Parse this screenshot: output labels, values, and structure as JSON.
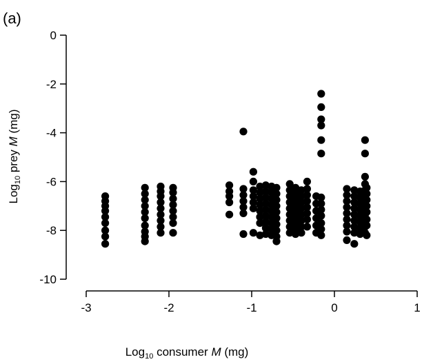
{
  "panel_label": "(a)",
  "chart_data": {
    "type": "scatter",
    "title": "",
    "xlabel": {
      "pre": "Log",
      "sub": "10",
      "mid": " consumer ",
      "var": "M",
      "post": " (mg)"
    },
    "ylabel": {
      "pre": "Log",
      "sub": "10",
      "mid": " prey ",
      "var": "M",
      "post": " (mg)"
    },
    "xlim": [
      -3,
      1
    ],
    "ylim": [
      -10,
      0
    ],
    "xticks": [
      -3,
      -2,
      -1,
      0,
      1
    ],
    "xtick_labels": [
      "-3",
      "-2",
      "-1",
      "0",
      "1"
    ],
    "yticks": [
      0,
      -2,
      -4,
      -6,
      -8,
      -10
    ],
    "ytick_labels": [
      "0",
      "-2",
      "-4",
      "-6",
      "-8",
      "-10"
    ],
    "grid": false,
    "marker_color": "#000000",
    "columns": [
      {
        "x": -2.77,
        "y": [
          -6.6,
          -6.8,
          -7.0,
          -7.2,
          -7.45,
          -7.7,
          -8.0,
          -8.25,
          -8.55
        ]
      },
      {
        "x": -2.29,
        "y": [
          -6.25,
          -6.5,
          -6.75,
          -7.0,
          -7.25,
          -7.5,
          -7.8,
          -8.05,
          -8.25,
          -8.45
        ]
      },
      {
        "x": -2.1,
        "y": [
          -6.2,
          -6.4,
          -6.6,
          -6.85,
          -7.1,
          -7.35,
          -7.6,
          -7.85,
          -8.1
        ]
      },
      {
        "x": -1.95,
        "y": [
          -6.25,
          -6.45,
          -6.7,
          -6.95,
          -7.2,
          -7.45,
          -7.7,
          -8.1
        ]
      },
      {
        "x": -1.27,
        "y": [
          -6.15,
          -6.4,
          -6.6,
          -6.85,
          -7.35
        ]
      },
      {
        "x": -1.1,
        "y": [
          -3.95,
          -6.3,
          -6.55,
          -6.8,
          -7.05,
          -7.3,
          -8.15
        ]
      },
      {
        "x": -0.98,
        "y": [
          -5.6,
          -6.0,
          -6.35,
          -6.6,
          -6.85,
          -7.1,
          -8.1
        ]
      },
      {
        "x": -0.9,
        "y": [
          -6.2,
          -6.45,
          -6.7,
          -6.95,
          -7.2,
          -7.45,
          -7.7,
          -8.2
        ]
      },
      {
        "x": -0.83,
        "y": [
          -6.15,
          -6.4,
          -6.65,
          -6.9,
          -7.15,
          -7.4,
          -7.65,
          -7.9,
          -8.15
        ]
      },
      {
        "x": -0.76,
        "y": [
          -6.2,
          -6.45,
          -6.7,
          -6.95,
          -7.2,
          -7.45,
          -7.7,
          -7.95,
          -8.2
        ]
      },
      {
        "x": -0.7,
        "y": [
          -6.25,
          -6.5,
          -6.75,
          -7.0,
          -7.25,
          -7.5,
          -7.75,
          -8.0,
          -8.25,
          -8.45
        ]
      },
      {
        "x": -0.54,
        "y": [
          -6.1,
          -6.35,
          -6.6,
          -6.85,
          -7.1,
          -7.35,
          -7.6,
          -7.85,
          -8.1
        ]
      },
      {
        "x": -0.47,
        "y": [
          -6.25,
          -6.5,
          -6.75,
          -7.0,
          -7.25,
          -7.5,
          -7.75,
          -8.0,
          -8.15
        ]
      },
      {
        "x": -0.4,
        "y": [
          -6.35,
          -6.6,
          -6.85,
          -7.1,
          -7.35,
          -7.6,
          -7.85,
          -8.1
        ]
      },
      {
        "x": -0.33,
        "y": [
          -6.0,
          -6.3,
          -6.55,
          -6.8,
          -7.05,
          -7.3,
          -7.55,
          -7.85
        ]
      },
      {
        "x": -0.22,
        "y": [
          -6.6,
          -6.9,
          -7.2,
          -7.5,
          -7.8,
          -8.1
        ]
      },
      {
        "x": -0.16,
        "y": [
          -2.4,
          -2.95,
          -3.45,
          -3.7,
          -4.3,
          -4.85,
          -6.65,
          -6.9,
          -7.15,
          -7.4,
          -7.7,
          -7.95,
          -8.2
        ]
      },
      {
        "x": 0.15,
        "y": [
          -6.3,
          -6.55,
          -6.8,
          -7.05,
          -7.3,
          -7.55,
          -7.8,
          -8.05,
          -8.4
        ]
      },
      {
        "x": 0.24,
        "y": [
          -6.35,
          -6.6,
          -6.85,
          -7.1,
          -7.35,
          -7.6,
          -7.85,
          -8.1,
          -8.55
        ]
      },
      {
        "x": 0.31,
        "y": [
          -6.4,
          -6.65,
          -6.9,
          -7.15,
          -7.4,
          -7.65,
          -7.9,
          -8.15
        ]
      },
      {
        "x": 0.37,
        "y": [
          -4.3,
          -4.85,
          -5.8,
          -6.1,
          -6.35,
          -6.6,
          -6.85,
          -7.1,
          -7.35,
          -7.6,
          -7.85,
          -8.1
        ]
      },
      {
        "x": 0.39,
        "y": [
          -6.25,
          -6.5,
          -6.75,
          -7.0,
          -7.25,
          -7.55,
          -7.8,
          -8.2
        ]
      }
    ]
  }
}
